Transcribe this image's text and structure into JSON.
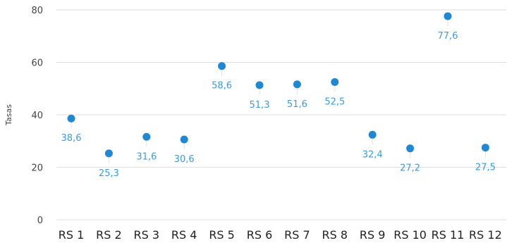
{
  "chart_data": {
    "type": "scatter",
    "title": "",
    "xlabel": "",
    "ylabel": "Tasas",
    "ylim": [
      0,
      80
    ],
    "yticks": [
      "0",
      "20",
      "40",
      "60",
      "80"
    ],
    "grid": true,
    "categories": [
      "RS 1",
      "RS 2",
      "RS 3",
      "RS 4",
      "RS 5",
      "RS 6",
      "RS 7",
      "RS 8",
      "RS 9",
      "RS 10",
      "RS 11",
      "RS 12"
    ],
    "values": [
      38.6,
      25.3,
      31.6,
      30.6,
      58.6,
      51.3,
      51.6,
      52.5,
      32.4,
      27.2,
      77.6,
      27.5
    ],
    "data_labels": [
      "38,6",
      "25,3",
      "31,6",
      "30,6",
      "58,6",
      "51,3",
      "51,6",
      "52,5",
      "32,4",
      "27,2",
      "77,6",
      "27,5"
    ],
    "colors": {
      "point": "#1e88d4",
      "label": "#3a9be0",
      "grid": "#dddddd",
      "stem": "#e2e2e2"
    }
  }
}
